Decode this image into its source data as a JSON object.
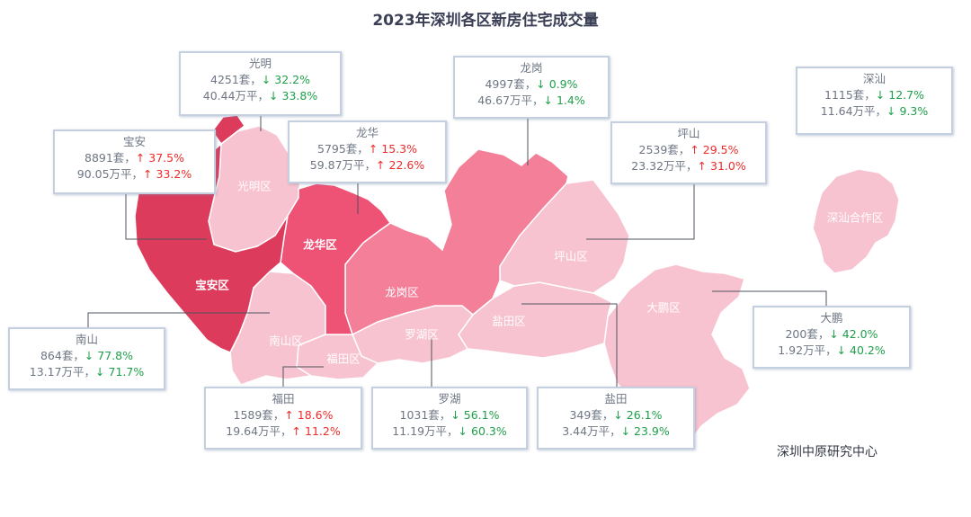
{
  "title": "2023年深圳各区新房住宅成交量",
  "source": "深圳中原研究中心",
  "colors": {
    "dark": "#dd3b5c",
    "mid": "#ee5275",
    "midlight": "#f47f99",
    "light": "#f8c3d0",
    "up": "#ee2b2b",
    "down": "#1fa04a"
  },
  "chart_data": {
    "type": "map",
    "title": "2023年深圳各区新房住宅成交量",
    "units": {
      "sets": "套",
      "area": "万平"
    },
    "districts": [
      {
        "name": "光明",
        "map_label": "光明区",
        "sets": 4251,
        "sets_text": "4251套，",
        "sets_dir": "down",
        "sets_change": "32.2%",
        "area": 40.44,
        "area_text": "40.44万平，",
        "area_dir": "down",
        "area_change": "33.8%"
      },
      {
        "name": "宝安",
        "map_label": "宝安区",
        "sets": 8891,
        "sets_text": "8891套，",
        "sets_dir": "up",
        "sets_change": "37.5%",
        "area": 90.05,
        "area_text": "90.05万平，",
        "area_dir": "up",
        "area_change": "33.2%"
      },
      {
        "name": "龙华",
        "map_label": "龙华区",
        "sets": 5795,
        "sets_text": "5795套，",
        "sets_dir": "up",
        "sets_change": "15.3%",
        "area": 59.87,
        "area_text": "59.87万平，",
        "area_dir": "up",
        "area_change": "22.6%"
      },
      {
        "name": "龙岗",
        "map_label": "龙岗区",
        "sets": 4997,
        "sets_text": "4997套，",
        "sets_dir": "down",
        "sets_change": "0.9%",
        "area": 46.67,
        "area_text": "46.67万平，",
        "area_dir": "down",
        "area_change": "1.4%"
      },
      {
        "name": "坪山",
        "map_label": "坪山区",
        "sets": 2539,
        "sets_text": "2539套，",
        "sets_dir": "up",
        "sets_change": "29.5%",
        "area": 23.32,
        "area_text": "23.32万平，",
        "area_dir": "up",
        "area_change": "31.0%"
      },
      {
        "name": "深汕",
        "map_label": "深汕合作区",
        "sets": 1115,
        "sets_text": "1115套，",
        "sets_dir": "down",
        "sets_change": "12.7%",
        "area": 11.64,
        "area_text": "11.64万平，",
        "area_dir": "down",
        "area_change": "9.3%"
      },
      {
        "name": "大鹏",
        "map_label": "大鹏区",
        "sets": 200,
        "sets_text": "200套，",
        "sets_dir": "down",
        "sets_change": "42.0%",
        "area": 1.92,
        "area_text": "1.92万平，",
        "area_dir": "down",
        "area_change": "40.2%"
      },
      {
        "name": "南山",
        "map_label": "南山区",
        "sets": 864,
        "sets_text": "864套，",
        "sets_dir": "down",
        "sets_change": "77.8%",
        "area": 13.17,
        "area_text": "13.17万平，",
        "area_dir": "down",
        "area_change": "71.7%"
      },
      {
        "name": "福田",
        "map_label": "福田区",
        "sets": 1589,
        "sets_text": "1589套，",
        "sets_dir": "up",
        "sets_change": "18.6%",
        "area": 19.64,
        "area_text": "19.64万平，",
        "area_dir": "up",
        "area_change": "11.2%"
      },
      {
        "name": "罗湖",
        "map_label": "罗湖区",
        "sets": 1031,
        "sets_text": "1031套，",
        "sets_dir": "down",
        "sets_change": "56.1%",
        "area": 11.19,
        "area_text": "11.19万平，",
        "area_dir": "down",
        "area_change": "60.3%"
      },
      {
        "name": "盐田",
        "map_label": "盐田区",
        "sets": 349,
        "sets_text": "349套，",
        "sets_dir": "down",
        "sets_change": "26.1%",
        "area": 3.44,
        "area_text": "3.44万平，",
        "area_dir": "down",
        "area_change": "23.9%"
      }
    ]
  }
}
